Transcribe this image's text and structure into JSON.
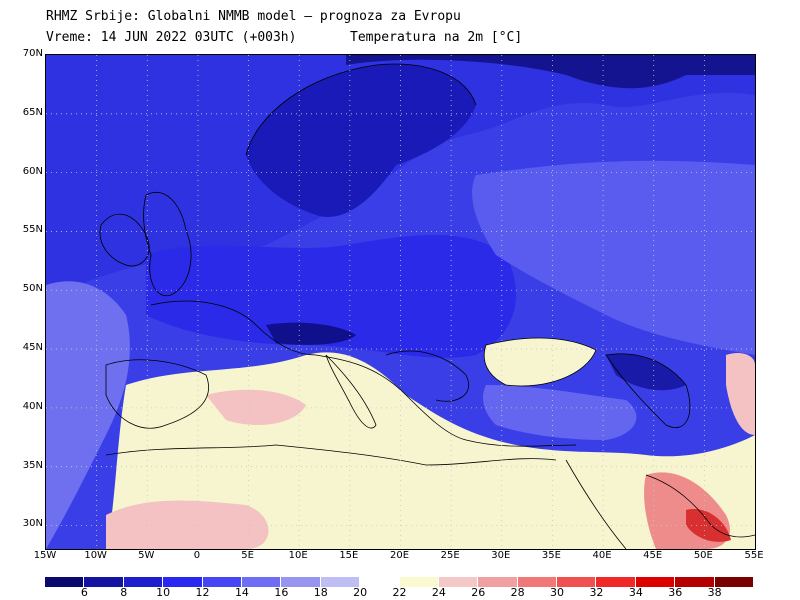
{
  "header": {
    "line1": "RHMZ Srbije: Globalni NMMB model — prognoza za Evropu",
    "line2": "Vreme: 14 JUN 2022 03UTC (+003h)",
    "line2b": "Temperatura na 2m [°C]"
  },
  "map": {
    "lat_labels": [
      "70N",
      "65N",
      "60N",
      "55N",
      "50N",
      "45N",
      "40N",
      "35N",
      "30N"
    ],
    "lat_values": [
      70,
      65,
      60,
      55,
      50,
      45,
      40,
      35,
      30
    ],
    "lon_labels": [
      "15W",
      "10W",
      "5W",
      "0",
      "5E",
      "10E",
      "15E",
      "20E",
      "25E",
      "30E",
      "35E",
      "40E",
      "45E",
      "50E",
      "55E"
    ],
    "lon_values": [
      -15,
      -10,
      -5,
      0,
      5,
      10,
      15,
      20,
      25,
      30,
      35,
      40,
      45,
      50,
      55
    ],
    "lon_range": [
      -15,
      55
    ],
    "lat_range": [
      28,
      70
    ],
    "gridlines": "dotted"
  },
  "colorbar": {
    "labels": [
      "6",
      "8",
      "10",
      "12",
      "14",
      "16",
      "18",
      "20",
      "22",
      "24",
      "26",
      "28",
      "30",
      "32",
      "34",
      "36",
      "38"
    ],
    "colors": [
      "#0a0a6e",
      "#1414a0",
      "#1e1ecd",
      "#2828f0",
      "#4646f5",
      "#6e6ef5",
      "#9696f0",
      "#bebef5",
      "#ffffff",
      "#fafad2",
      "#f5c8c8",
      "#f0a0a0",
      "#f07878",
      "#f05050",
      "#f02828",
      "#dc0000",
      "#b40000",
      "#780000"
    ]
  }
}
